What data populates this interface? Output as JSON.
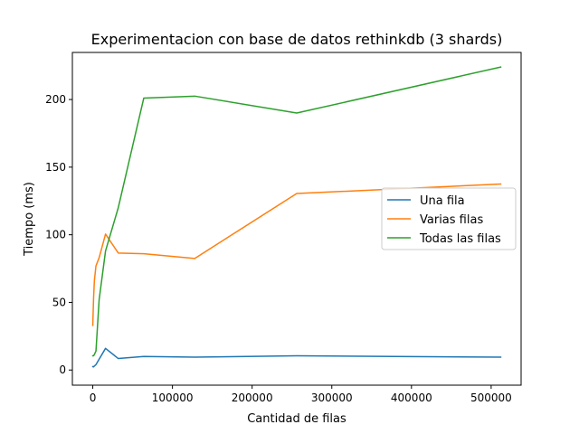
{
  "chart_data": {
    "type": "line",
    "title": "Experimentacion con base de datos rethinkdb (3 shards)",
    "xlabel": "Cantidad de filas",
    "ylabel": "Tiempo (ms)",
    "xlim": [
      -25600,
      537600
    ],
    "ylim": [
      -11.2,
      234.8
    ],
    "x_ticks": [
      0,
      100000,
      200000,
      300000,
      400000,
      500000
    ],
    "y_ticks": [
      0,
      50,
      100,
      150,
      200
    ],
    "grid": false,
    "legend_position": "center-right",
    "series": [
      {
        "name": "Una fila",
        "color": "#1f77b4",
        "x": [
          1,
          1000,
          2000,
          4000,
          8000,
          16000,
          32000,
          64000,
          128000,
          256000,
          512000
        ],
        "y": [
          2.5,
          2.3,
          3.0,
          4.0,
          8.0,
          16.0,
          8.5,
          10.0,
          9.5,
          10.5,
          9.5
        ]
      },
      {
        "name": "Varias filas",
        "color": "#ff7f0e",
        "x": [
          1,
          1000,
          2000,
          4000,
          8000,
          16000,
          32000,
          64000,
          128000,
          256000,
          512000
        ],
        "y": [
          33,
          53,
          66,
          77,
          83,
          100.5,
          86.5,
          86,
          82.5,
          130.5,
          137.5
        ]
      },
      {
        "name": "Todas las filas",
        "color": "#2ca02c",
        "x": [
          1,
          1000,
          2000,
          4000,
          8000,
          16000,
          32000,
          64000,
          128000,
          256000,
          512000
        ],
        "y": [
          10.5,
          10.5,
          11.5,
          14,
          52,
          88,
          120,
          201,
          202.5,
          190,
          224
        ]
      }
    ]
  }
}
